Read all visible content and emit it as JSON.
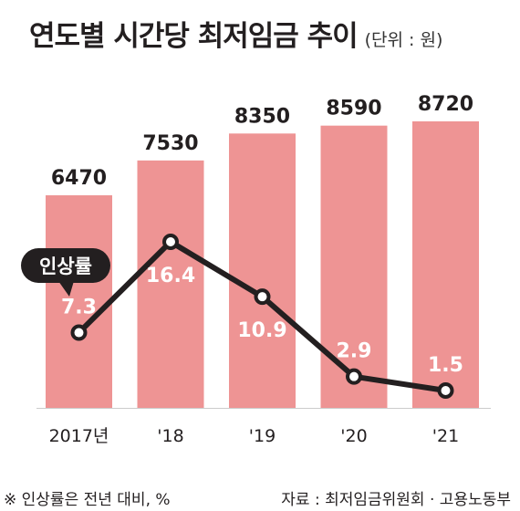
{
  "title": "연도별 시간당 최저임금 추이",
  "unit": "(단위 : 원)",
  "note": "※ 인상률은 전년 대비, %",
  "source": "자료 : 최저임금위원회 · 고용노동부",
  "colors": {
    "bar": "#ee9494",
    "line": "#231f20",
    "marker_fill": "#ffffff",
    "rate_text": "#ffffff",
    "callout_bg": "#231f20",
    "callout_text": "#ffffff"
  },
  "chart_data": {
    "type": "bar",
    "categories": [
      "2017년",
      "'18",
      "'19",
      "'20",
      "'21"
    ],
    "series": [
      {
        "values": [
          6470,
          7530,
          8350,
          8590,
          8720
        ]
      },
      {
        "name": "인상률",
        "type": "line",
        "values": [
          7.3,
          16.4,
          10.9,
          2.9,
          1.5
        ]
      }
    ],
    "bar_labels": [
      "6470",
      "7530",
      "8350",
      "8590",
      "8720"
    ],
    "line_labels": [
      "7.3",
      "16.4",
      "10.9",
      "2.9",
      "1.5"
    ],
    "callout": "인상률",
    "grid": false,
    "legend": "none"
  }
}
